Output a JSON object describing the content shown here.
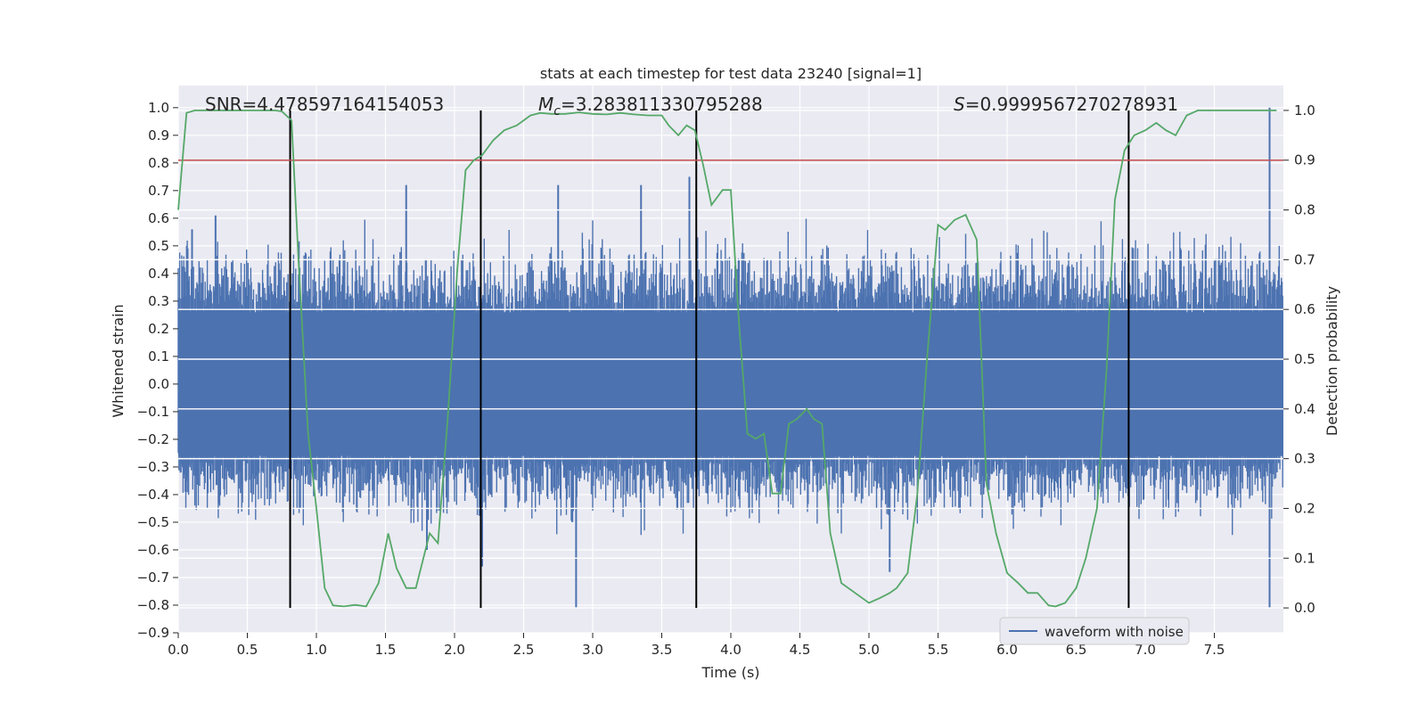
{
  "chart_data": {
    "type": "line",
    "title": "stats at each timestep for test data 23240 [signal=1]",
    "xlabel": "Time (s)",
    "ylabel_left": "Whitened strain",
    "ylabel_right": "Detection probability",
    "xlim": [
      0.0,
      8.0
    ],
    "ylim_left": [
      -0.9,
      1.08
    ],
    "ylim_right": [
      -0.05,
      1.05
    ],
    "x_ticks": [
      "0.0",
      "0.5",
      "1.0",
      "1.5",
      "2.0",
      "2.5",
      "3.0",
      "3.5",
      "4.0",
      "4.5",
      "5.0",
      "5.5",
      "6.0",
      "6.5",
      "7.0",
      "7.5"
    ],
    "y_ticks_left": [
      "1.0",
      "0.9",
      "0.8",
      "0.7",
      "0.6",
      "0.5",
      "0.4",
      "0.3",
      "0.2",
      "0.1",
      "0.0",
      "−0.1",
      "−0.2",
      "−0.3",
      "−0.4",
      "−0.5",
      "−0.6",
      "−0.7",
      "−0.8",
      "−0.9"
    ],
    "y_ticks_right": [
      "1.0",
      "0.9",
      "0.8",
      "0.7",
      "0.6",
      "0.5",
      "0.4",
      "0.3",
      "0.2",
      "0.1",
      "0.0"
    ],
    "grid": true,
    "legend_position": "lower-right",
    "annotations": {
      "snr": "SNR=4.478597164154053",
      "mc_symbol": "M",
      "mc_sub": "c",
      "mc_value": "=3.283811330795288",
      "s_symbol": "S",
      "s_value": "=0.9999567270278931"
    },
    "vertical_markers_x": [
      0.81,
      2.19,
      3.75,
      6.88
    ],
    "threshold_probability": 0.9,
    "series": [
      {
        "name": "waveform with noise",
        "color": "#4c72b0",
        "description": "noisy whitened strain, envelope approx [-0.55, 0.65] with peak 1.0 at x=7.9 and min -0.81 at x=2.88",
        "spikes": [
          [
            0.1,
            0.56
          ],
          [
            0.27,
            0.61
          ],
          [
            1.65,
            0.72
          ],
          [
            2.75,
            0.72
          ],
          [
            3.35,
            0.72
          ],
          [
            3.7,
            0.75
          ],
          [
            7.9,
            1.0
          ],
          [
            2.88,
            -0.81
          ],
          [
            7.9,
            -0.81
          ],
          [
            5.15,
            -0.68
          ],
          [
            1.8,
            -0.6
          ],
          [
            2.2,
            -0.66
          ]
        ]
      },
      {
        "name": "detection probability",
        "color": "#55a868",
        "x": [
          0.0,
          0.06,
          0.12,
          0.2,
          0.3,
          0.4,
          0.5,
          0.6,
          0.7,
          0.75,
          0.82,
          0.87,
          0.94,
          1.0,
          1.06,
          1.12,
          1.2,
          1.28,
          1.36,
          1.45,
          1.52,
          1.58,
          1.65,
          1.72,
          1.82,
          1.88,
          1.95,
          2.02,
          2.08,
          2.14,
          2.2,
          2.28,
          2.36,
          2.45,
          2.55,
          2.62,
          2.7,
          2.8,
          2.9,
          3.0,
          3.1,
          3.2,
          3.3,
          3.4,
          3.5,
          3.55,
          3.62,
          3.68,
          3.74,
          3.8,
          3.86,
          3.94,
          4.0,
          4.06,
          4.12,
          4.18,
          4.24,
          4.3,
          4.36,
          4.42,
          4.48,
          4.55,
          4.6,
          4.66,
          4.72,
          4.8,
          4.9,
          5.0,
          5.08,
          5.15,
          5.2,
          5.28,
          5.35,
          5.42,
          5.5,
          5.55,
          5.62,
          5.7,
          5.78,
          5.85,
          5.92,
          6.0,
          6.08,
          6.15,
          6.22,
          6.3,
          6.35,
          6.42,
          6.5,
          6.57,
          6.65,
          6.72,
          6.78,
          6.85,
          6.92,
          7.0,
          7.08,
          7.15,
          7.22,
          7.3,
          7.38,
          7.5,
          7.7,
          7.95
        ],
        "values": [
          0.8,
          0.995,
          1.0,
          1.0,
          1.0,
          1.0,
          1.0,
          1.0,
          1.0,
          0.998,
          0.98,
          0.7,
          0.35,
          0.2,
          0.04,
          0.005,
          0.003,
          0.006,
          0.003,
          0.05,
          0.15,
          0.08,
          0.04,
          0.04,
          0.15,
          0.13,
          0.38,
          0.68,
          0.88,
          0.9,
          0.91,
          0.94,
          0.96,
          0.97,
          0.99,
          0.995,
          0.993,
          0.993,
          0.996,
          0.993,
          0.992,
          0.995,
          0.992,
          0.99,
          0.99,
          0.97,
          0.95,
          0.97,
          0.96,
          0.89,
          0.81,
          0.84,
          0.84,
          0.57,
          0.35,
          0.34,
          0.35,
          0.23,
          0.23,
          0.37,
          0.38,
          0.4,
          0.38,
          0.37,
          0.15,
          0.05,
          0.03,
          0.01,
          0.02,
          0.03,
          0.04,
          0.07,
          0.23,
          0.5,
          0.77,
          0.76,
          0.78,
          0.79,
          0.74,
          0.25,
          0.15,
          0.07,
          0.05,
          0.03,
          0.03,
          0.005,
          0.003,
          0.01,
          0.04,
          0.1,
          0.2,
          0.48,
          0.82,
          0.92,
          0.95,
          0.96,
          0.975,
          0.96,
          0.95,
          0.99,
          1.0,
          1.0,
          1.0,
          1.0
        ]
      }
    ]
  }
}
